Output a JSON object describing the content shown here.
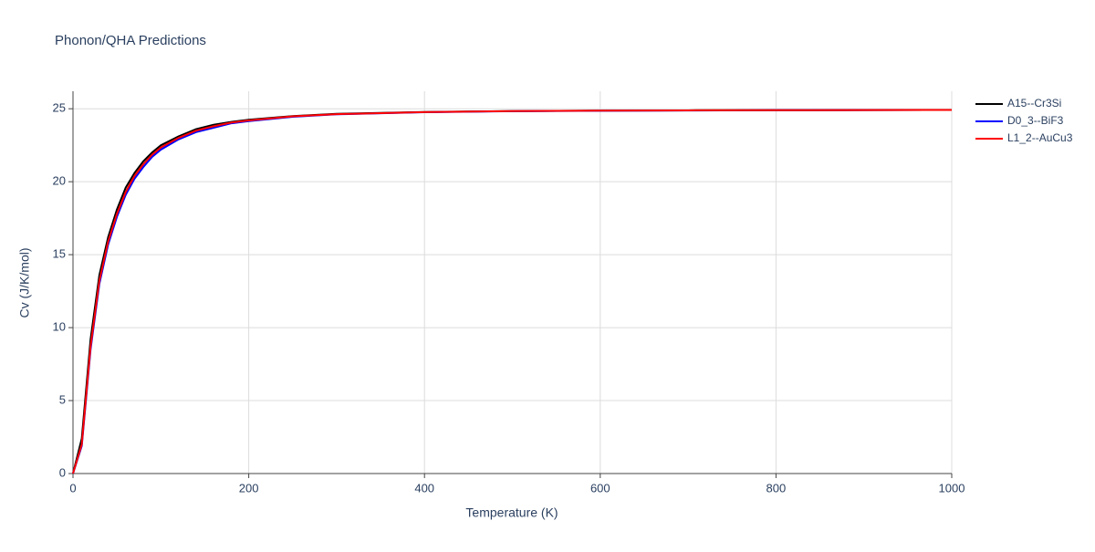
{
  "chart_data": {
    "type": "line",
    "title": "Phonon/QHA Predictions",
    "x_label": "Temperature (K)",
    "y_label": "Cv (J/K/mol)",
    "x": [
      0,
      10,
      20,
      30,
      40,
      50,
      60,
      70,
      80,
      90,
      100,
      120,
      140,
      160,
      180,
      200,
      250,
      300,
      400,
      500,
      600,
      700,
      800,
      900,
      1000
    ],
    "series": [
      {
        "name": "A15--Cr3Si",
        "color": "#000000",
        "values": [
          0,
          2.4,
          9.2,
          13.6,
          16.2,
          18.1,
          19.6,
          20.6,
          21.4,
          22.0,
          22.5,
          23.1,
          23.6,
          23.9,
          24.1,
          24.25,
          24.5,
          24.65,
          24.78,
          24.84,
          24.87,
          24.89,
          24.9,
          24.91,
          24.92
        ]
      },
      {
        "name": "D0_3--BiF3",
        "color": "#0000ff",
        "values": [
          0,
          1.9,
          8.5,
          13.0,
          15.7,
          17.6,
          19.1,
          20.2,
          21.0,
          21.7,
          22.2,
          22.9,
          23.4,
          23.7,
          24.0,
          24.15,
          24.45,
          24.62,
          24.76,
          24.83,
          24.86,
          24.88,
          24.9,
          24.91,
          24.92
        ]
      },
      {
        "name": "L1_2--AuCu3",
        "color": "#ff0000",
        "values": [
          0,
          2.0,
          8.7,
          13.2,
          15.9,
          17.8,
          19.3,
          20.4,
          21.2,
          21.85,
          22.35,
          23.0,
          23.5,
          23.8,
          24.05,
          24.2,
          24.48,
          24.63,
          24.77,
          24.84,
          24.87,
          24.89,
          24.9,
          24.91,
          24.92
        ]
      }
    ],
    "xlim": [
      0,
      1000
    ],
    "ylim": [
      0,
      26.2
    ],
    "xticks": [
      0,
      200,
      400,
      600,
      800,
      1000
    ],
    "yticks": [
      0,
      5,
      10,
      15,
      20,
      25
    ],
    "grid": true,
    "legend": "right"
  }
}
